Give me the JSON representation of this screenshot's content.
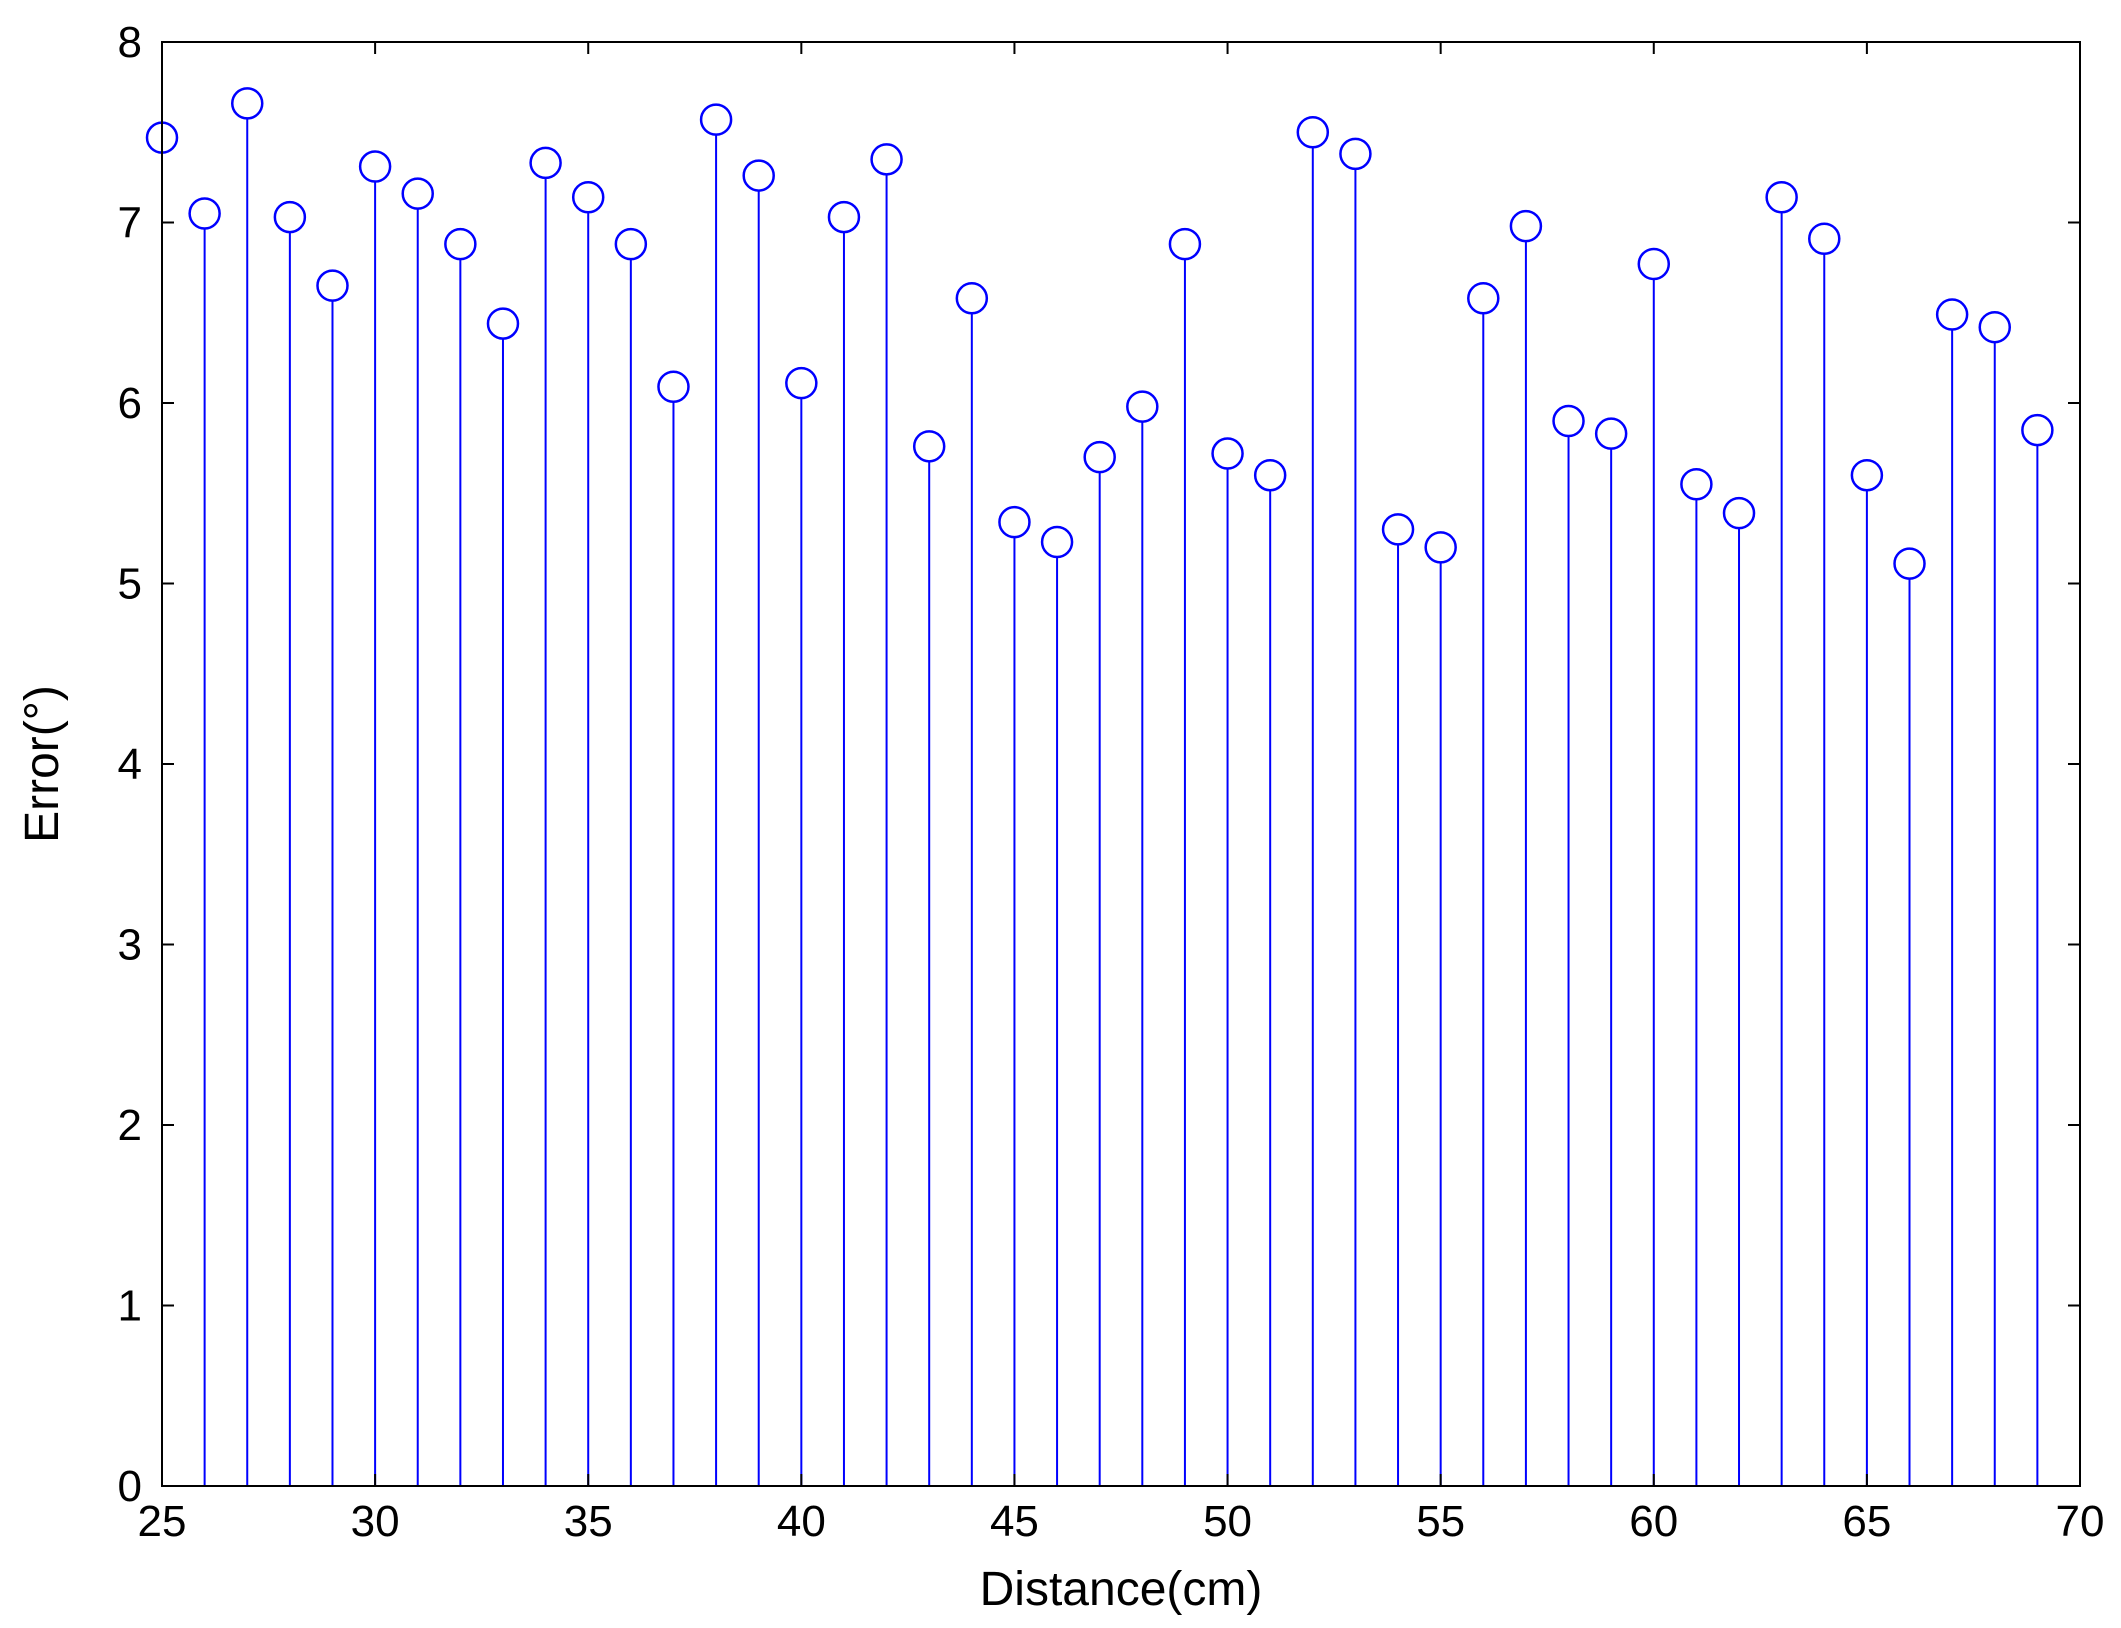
{
  "chart_data": {
    "type": "stem",
    "title": "",
    "xlabel": "Distance(cm)",
    "ylabel": "Error(°)",
    "xlim": [
      25,
      70
    ],
    "ylim": [
      0,
      8
    ],
    "xticks": [
      25,
      30,
      35,
      40,
      45,
      50,
      55,
      60,
      65,
      70
    ],
    "yticks": [
      0,
      1,
      2,
      3,
      4,
      5,
      6,
      7,
      8
    ],
    "grid": false,
    "legend": "none",
    "marker": "open-circle",
    "color": "#0000ff",
    "x": [
      25,
      26,
      27,
      28,
      29,
      30,
      31,
      32,
      33,
      34,
      35,
      36,
      37,
      38,
      39,
      40,
      41,
      42,
      43,
      44,
      45,
      46,
      47,
      48,
      49,
      50,
      51,
      52,
      53,
      54,
      55,
      56,
      57,
      58,
      59,
      60,
      61,
      62,
      63,
      64,
      65,
      66,
      67,
      68,
      69
    ],
    "y": [
      7.47,
      7.05,
      7.66,
      7.03,
      6.65,
      7.31,
      7.16,
      6.88,
      6.44,
      7.33,
      7.14,
      6.88,
      6.09,
      7.57,
      7.26,
      6.11,
      7.03,
      7.35,
      5.76,
      6.58,
      5.34,
      5.23,
      5.7,
      5.98,
      6.88,
      5.72,
      5.6,
      7.5,
      7.38,
      5.3,
      5.2,
      6.58,
      6.98,
      5.9,
      5.83,
      6.77,
      5.55,
      5.39,
      7.14,
      6.91,
      5.6,
      5.11,
      6.49,
      6.42,
      5.85
    ]
  }
}
